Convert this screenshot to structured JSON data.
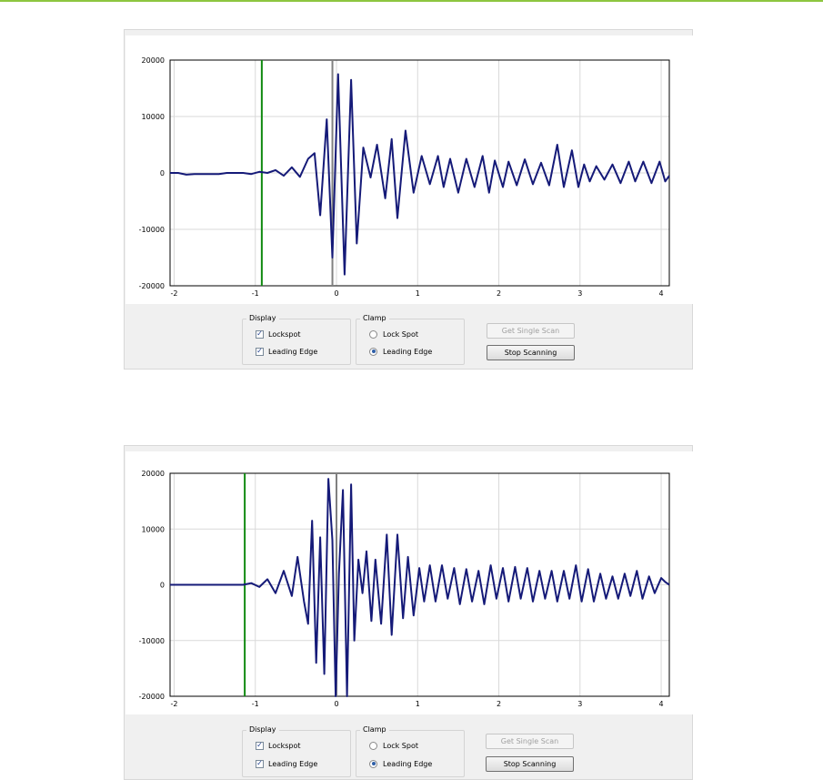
{
  "panels": [
    {
      "display_group": {
        "title": "Display",
        "options": [
          {
            "label": "Lockspot",
            "checked": true
          },
          {
            "label": "Leading Edge",
            "checked": true
          }
        ]
      },
      "clamp_group": {
        "title": "Clamp",
        "options": [
          {
            "label": "Lock Spot",
            "selected": false
          },
          {
            "label": "Leading Edge",
            "selected": true
          }
        ]
      },
      "buttons": {
        "get_single_scan": "Get Single Scan",
        "stop_scanning": "Stop Scanning"
      }
    },
    {
      "display_group": {
        "title": "Display",
        "options": [
          {
            "label": "Lockspot",
            "checked": true
          },
          {
            "label": "Leading Edge",
            "checked": true
          }
        ]
      },
      "clamp_group": {
        "title": "Clamp",
        "options": [
          {
            "label": "Lock Spot",
            "selected": false
          },
          {
            "label": "Leading Edge",
            "selected": true
          }
        ]
      },
      "buttons": {
        "get_single_scan": "Get Single Scan",
        "stop_scanning": "Stop Scanning"
      }
    }
  ],
  "chart_data": [
    {
      "type": "line",
      "title": "",
      "xlabel": "",
      "ylabel": "",
      "xlim": [
        -2.05,
        4.1
      ],
      "ylim": [
        -20000,
        20000
      ],
      "x_ticks": [
        "-2",
        "-1",
        "0",
        "1",
        "2",
        "3",
        "4"
      ],
      "y_ticks": [
        "20000",
        "10000",
        "0",
        "-10000",
        "-20000"
      ],
      "grid": true,
      "markers": {
        "leading_edge_x": -0.92,
        "lockspot_x": -0.05
      },
      "colors": {
        "series": "#151a78",
        "leading_edge": "#118a11",
        "lockspot": "#808080",
        "grid": "#d9d9d9"
      },
      "series": [
        {
          "x": [
            -2.05,
            -1.95,
            -1.85,
            -1.75,
            -1.65,
            -1.55,
            -1.45,
            -1.35,
            -1.25,
            -1.15,
            -1.05,
            -0.95,
            -0.85,
            -0.75,
            -0.65,
            -0.55,
            -0.45,
            -0.35,
            -0.27,
            -0.2,
            -0.12,
            -0.05,
            0.02,
            0.1,
            0.18,
            0.25,
            0.33,
            0.42,
            0.5,
            0.6,
            0.68,
            0.75,
            0.85,
            0.95,
            1.05,
            1.15,
            1.25,
            1.32,
            1.4,
            1.5,
            1.6,
            1.7,
            1.8,
            1.88,
            1.95,
            2.05,
            2.12,
            2.22,
            2.32,
            2.42,
            2.52,
            2.62,
            2.72,
            2.8,
            2.9,
            2.98,
            3.05,
            3.12,
            3.2,
            3.3,
            3.4,
            3.5,
            3.6,
            3.68,
            3.78,
            3.88,
            3.98,
            4.05,
            4.1
          ],
          "y": [
            0,
            0,
            -300,
            -200,
            -200,
            -200,
            -200,
            0,
            0,
            0,
            -200,
            200,
            0,
            500,
            -500,
            1000,
            -700,
            2500,
            3500,
            -7500,
            9500,
            -15000,
            17500,
            -18000,
            16500,
            -12500,
            4500,
            -800,
            5000,
            -4500,
            6000,
            -8000,
            7500,
            -3500,
            3000,
            -2000,
            3000,
            -2500,
            2500,
            -3500,
            2500,
            -2500,
            3000,
            -3500,
            2200,
            -2500,
            2000,
            -2200,
            2400,
            -2000,
            1800,
            -2200,
            5000,
            -2500,
            4000,
            -2500,
            1500,
            -1500,
            1200,
            -1200,
            1500,
            -1800,
            2000,
            -1500,
            2000,
            -1800,
            2000,
            -1500,
            -500
          ]
        }
      ]
    },
    {
      "type": "line",
      "title": "",
      "xlabel": "",
      "ylabel": "",
      "xlim": [
        -2.05,
        4.1
      ],
      "ylim": [
        -20000,
        20000
      ],
      "x_ticks": [
        "-2",
        "-1",
        "0",
        "1",
        "2",
        "3",
        "4"
      ],
      "y_ticks": [
        "20000",
        "10000",
        "0",
        "-10000",
        "-20000"
      ],
      "grid": true,
      "markers": {
        "leading_edge_x": -1.13,
        "lockspot_x": 0.0
      },
      "colors": {
        "series": "#151a78",
        "leading_edge": "#118a11",
        "lockspot": "#808080",
        "grid": "#d9d9d9"
      },
      "series": [
        {
          "x": [
            -2.05,
            -1.9,
            -1.7,
            -1.5,
            -1.3,
            -1.15,
            -1.05,
            -0.95,
            -0.85,
            -0.75,
            -0.65,
            -0.55,
            -0.48,
            -0.4,
            -0.35,
            -0.3,
            -0.25,
            -0.2,
            -0.15,
            -0.1,
            -0.05,
            -0.01,
            0.03,
            0.08,
            0.13,
            0.18,
            0.22,
            0.27,
            0.32,
            0.37,
            0.43,
            0.48,
            0.55,
            0.62,
            0.68,
            0.75,
            0.82,
            0.88,
            0.95,
            1.02,
            1.08,
            1.15,
            1.22,
            1.3,
            1.37,
            1.45,
            1.52,
            1.6,
            1.67,
            1.75,
            1.82,
            1.9,
            1.97,
            2.05,
            2.12,
            2.2,
            2.27,
            2.35,
            2.42,
            2.5,
            2.57,
            2.65,
            2.72,
            2.8,
            2.87,
            2.95,
            3.02,
            3.1,
            3.17,
            3.25,
            3.32,
            3.4,
            3.47,
            3.55,
            3.62,
            3.7,
            3.77,
            3.85,
            3.92,
            4.0,
            4.05,
            4.1
          ],
          "y": [
            0,
            0,
            0,
            0,
            0,
            0,
            300,
            -400,
            1000,
            -1500,
            2500,
            -2000,
            5000,
            -3000,
            -7000,
            11500,
            -14000,
            8500,
            -16000,
            19000,
            8000,
            -20000,
            2000,
            17000,
            -20000,
            18000,
            -10000,
            4500,
            -1500,
            6000,
            -6500,
            4500,
            -7000,
            9000,
            -9000,
            9000,
            -6000,
            5000,
            -5500,
            3000,
            -3000,
            3500,
            -3000,
            3500,
            -2500,
            3000,
            -3500,
            2800,
            -3000,
            2500,
            -3500,
            3500,
            -2500,
            3000,
            -3000,
            3200,
            -2500,
            3000,
            -3000,
            2500,
            -2500,
            2500,
            -3000,
            2500,
            -2500,
            3500,
            -3000,
            2800,
            -3000,
            2000,
            -2500,
            1500,
            -2500,
            2000,
            -2000,
            2500,
            -2500,
            1500,
            -1500,
            1200,
            500,
            0
          ]
        }
      ]
    }
  ]
}
